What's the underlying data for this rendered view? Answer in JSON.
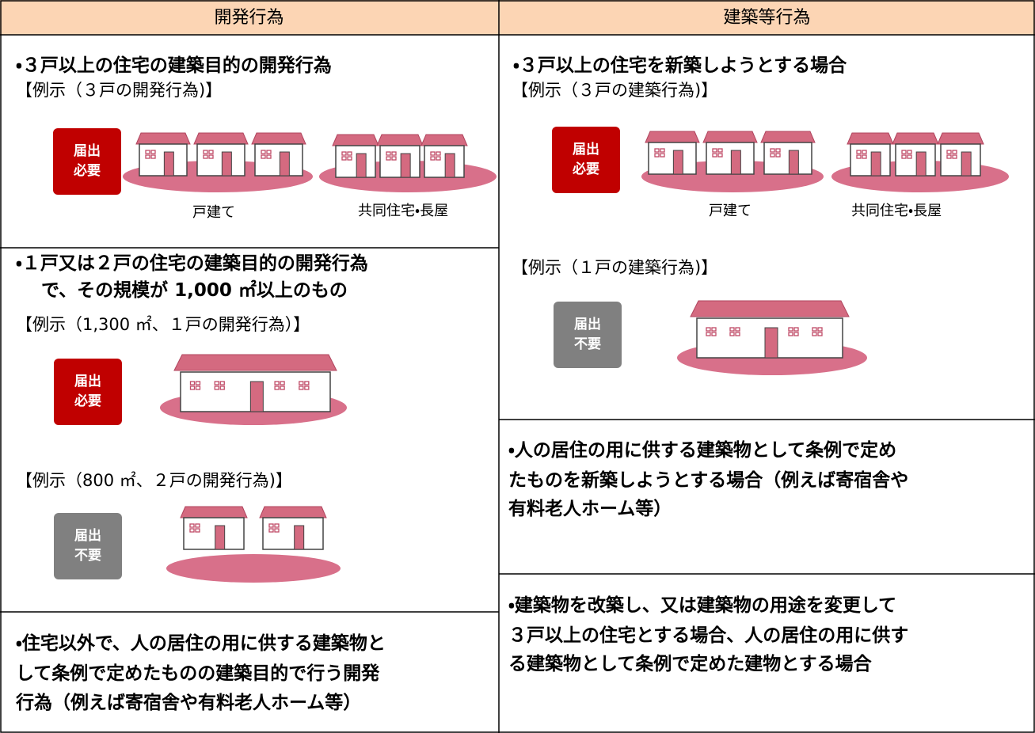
{
  "header": {
    "left": "開発行為",
    "right": "建築等行為"
  },
  "left": {
    "section1": {
      "title": "・３戸以上の住宅の建築目的の開発行為",
      "caption": "【例示（３戸の開発行為)】",
      "badge": [
        "届出",
        "必要"
      ],
      "label1": "戸建て",
      "label2": "共同住宅・長屋"
    },
    "section2": {
      "title": [
        "・１戸又は２戸の住宅の建築目的の開発行為",
        "で、その規模が 1,000 ㎡以上のもの"
      ],
      "caption1": "【例示（1,300 ㎡、１戸の開発行為）】",
      "badge1": [
        "届出",
        "必要"
      ],
      "caption2": "【例示（800 ㎡、２戸の開発行為)】",
      "badge2": [
        "届出",
        "不要"
      ]
    },
    "section3": {
      "text": [
        "・住宅以外で、人の居住の用に供する建築物と",
        "して条例で定めたものの建築目的で行う開発",
        "行為（例えば寄宿舎や有料老人ホーム等）"
      ]
    }
  },
  "right": {
    "section1": {
      "title": "・３戸以上の住宅を新築しようとする場合",
      "caption1": "【例示（３戸の建築行為)】",
      "badge1": [
        "届出",
        "必要"
      ],
      "label1": "戸建て",
      "label2": "共同住宅・長屋",
      "caption2": "【例示（１戸の建築行為)】",
      "badge2": [
        "届出",
        "不要"
      ]
    },
    "section2": {
      "text": [
        "・人の居住の用に供する建築物として条例で定め",
        "たものを新築しようとする場合（例えば寄宿舎や",
        "有料老人ホーム等）"
      ]
    },
    "section3": {
      "text": [
        "・建築物を改築し、又は建築物の用途を変更して",
        "３戸以上の住宅とする場合、人の居住の用に供す",
        "る建築物として条例で定めた建物とする場合"
      ]
    }
  }
}
